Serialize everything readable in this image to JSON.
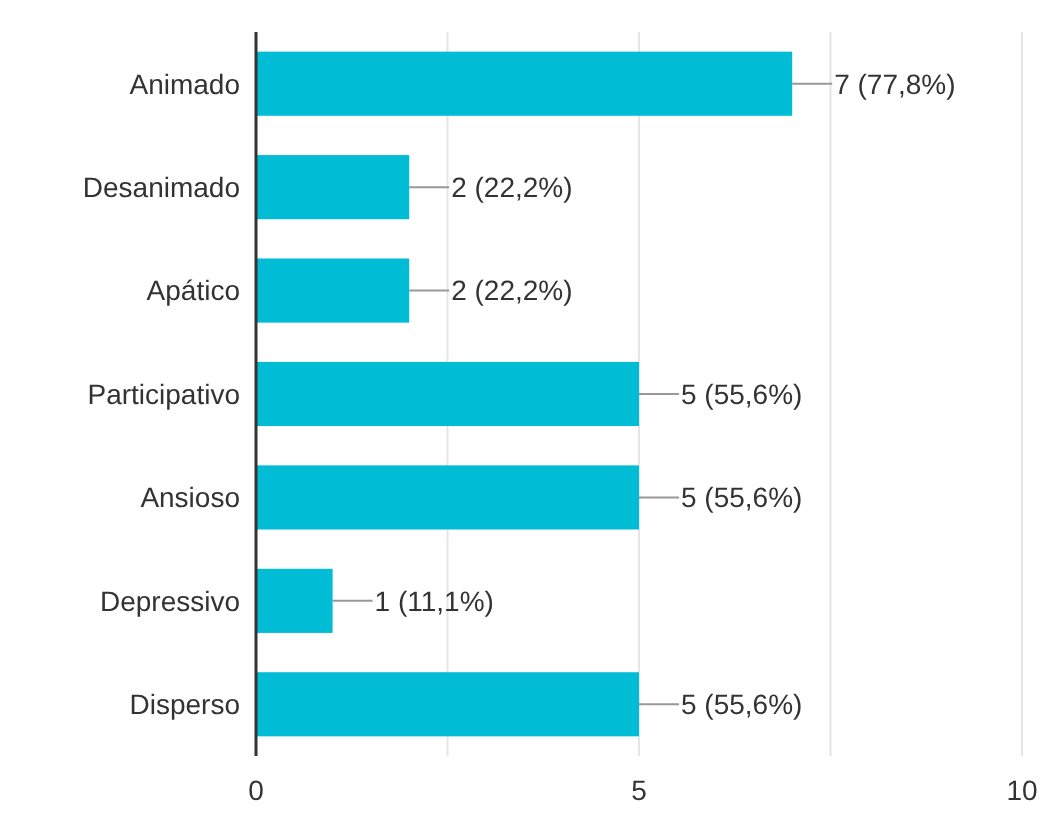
{
  "chart_data": {
    "type": "bar",
    "orientation": "horizontal",
    "categories": [
      "Animado",
      "Desanimado",
      "Apático",
      "Participativo",
      "Ansioso",
      "Depressivo",
      "Disperso"
    ],
    "values": [
      7,
      2,
      2,
      5,
      5,
      1,
      5
    ],
    "value_labels": [
      "7 (77,8%)",
      "2 (22,2%)",
      "2 (22,2%)",
      "5 (55,6%)",
      "5 (55,6%)",
      "1 (11,1%)",
      "5 (55,6%)"
    ],
    "color": "#00bcd4",
    "xlim": [
      0,
      10
    ],
    "xticks": [
      0,
      {
        "value": 2.5,
        "label": null
      },
      5,
      {
        "value": 7.5,
        "label": null
      },
      10
    ],
    "grid": "x"
  }
}
